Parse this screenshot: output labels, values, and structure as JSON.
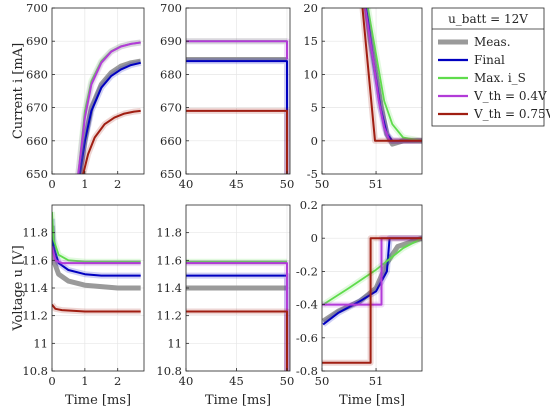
{
  "figure": {
    "ylabel_top": "Current i [mA]",
    "ylabel_bottom": "Voltage u [V]",
    "xlabel": "Time [ms]"
  },
  "legend": {
    "title": "u_batt = 12V",
    "placement": "right of top-right panel"
  },
  "colors": {
    "meas": "#9a9a9a",
    "final": "#0000c0",
    "maxis": "#5fdc4c",
    "vth04": "#b23bd8",
    "vth075": "#a01e12",
    "axis": "#262626",
    "grid": "#e6e6e6"
  },
  "chart_data": [
    {
      "type": "line",
      "xlim": [
        0,
        2.8
      ],
      "ylim": [
        650,
        700
      ],
      "xticks": [
        0,
        1,
        2
      ],
      "yticks": [
        650,
        660,
        670,
        680,
        690,
        700
      ],
      "ylabel": "Current i [mA]",
      "xlabel": "",
      "series": [
        {
          "name": "Meas.",
          "x": [
            0.85,
            1.0,
            1.2,
            1.5,
            1.8,
            2.1,
            2.4,
            2.7
          ],
          "y": [
            650,
            660,
            670,
            677,
            680.5,
            682.5,
            683.5,
            684
          ]
        },
        {
          "name": "Final",
          "x": [
            0.85,
            1.0,
            1.2,
            1.5,
            1.8,
            2.1,
            2.4,
            2.7
          ],
          "y": [
            650,
            660,
            669,
            676,
            679.5,
            681.5,
            682.8,
            683.5
          ]
        },
        {
          "name": "Max. i_S",
          "x": [
            0.8,
            1.0,
            1.2,
            1.5,
            1.8,
            2.1,
            2.4,
            2.7
          ],
          "y": [
            650,
            669,
            678,
            684,
            687,
            688.5,
            689.2,
            689.6
          ]
        },
        {
          "name": "V_th = 0.4V",
          "x": [
            0.8,
            1.0,
            1.2,
            1.5,
            1.8,
            2.1,
            2.4,
            2.7
          ],
          "y": [
            650,
            667,
            677,
            683.5,
            686.8,
            688.4,
            689.2,
            689.6
          ]
        },
        {
          "name": "V_th = 0.75V",
          "x": [
            0.95,
            1.1,
            1.3,
            1.6,
            1.9,
            2.2,
            2.5,
            2.7
          ],
          "y": [
            650,
            656,
            661,
            665,
            667,
            668.2,
            668.8,
            669
          ]
        }
      ]
    },
    {
      "type": "line",
      "xlim": [
        40,
        50.3
      ],
      "ylim": [
        650,
        700
      ],
      "xticks": [
        40,
        45,
        50
      ],
      "yticks": [
        650,
        660,
        670,
        680,
        690,
        700
      ],
      "series": [
        {
          "name": "Meas.",
          "x": [
            40,
            50
          ],
          "y": [
            684.5,
            684.5
          ]
        },
        {
          "name": "Final",
          "x": [
            40,
            50,
            50
          ],
          "y": [
            684,
            684,
            650
          ]
        },
        {
          "name": "Max. i_S",
          "x": [
            40,
            50
          ],
          "y": [
            690,
            690
          ]
        },
        {
          "name": "V_th = 0.4V",
          "x": [
            40,
            50,
            50
          ],
          "y": [
            690,
            690,
            684.5
          ]
        },
        {
          "name": "V_th = 0.75V",
          "x": [
            40,
            50,
            50
          ],
          "y": [
            669,
            669,
            650
          ]
        }
      ]
    },
    {
      "type": "line",
      "xlim": [
        50,
        51.85
      ],
      "ylim": [
        -5,
        20
      ],
      "xticks": [
        50,
        51
      ],
      "yticks": [
        -5,
        0,
        5,
        10,
        15,
        20
      ],
      "series": [
        {
          "name": "Meas.",
          "x": [
            50.82,
            50.9,
            51.0,
            51.1,
            51.2,
            51.3,
            51.5,
            51.85
          ],
          "y": [
            20,
            15,
            10,
            5,
            1,
            -0.5,
            0,
            0
          ]
        },
        {
          "name": "Final",
          "x": [
            50.82,
            50.95,
            51.08,
            51.2,
            51.3,
            51.85
          ],
          "y": [
            20,
            12,
            5,
            1,
            0,
            0
          ]
        },
        {
          "name": "Max. i_S",
          "x": [
            50.85,
            51.0,
            51.15,
            51.3,
            51.5,
            51.85
          ],
          "y": [
            20,
            13,
            6,
            2.5,
            0.5,
            0
          ]
        },
        {
          "name": "V_th = 0.4V",
          "x": [
            50.8,
            50.95,
            51.05,
            51.15,
            51.25,
            51.85
          ],
          "y": [
            20,
            12,
            6,
            2,
            0,
            0
          ]
        },
        {
          "name": "V_th = 0.75V",
          "x": [
            50.75,
            50.98,
            51.0,
            51.85
          ],
          "y": [
            20,
            0,
            0,
            0
          ]
        }
      ]
    },
    {
      "type": "line",
      "xlim": [
        0,
        2.8
      ],
      "ylim": [
        10.8,
        12.0
      ],
      "xticks": [
        0,
        1,
        2
      ],
      "yticks": [
        10.8,
        11,
        11.2,
        11.4,
        11.6,
        11.8
      ],
      "ylabel": "Voltage u [V]",
      "xlabel": "Time [ms]",
      "series": [
        {
          "name": "Meas.",
          "x": [
            0,
            0.05,
            0.2,
            0.5,
            1.0,
            1.5,
            2.0,
            2.7
          ],
          "y": [
            11.85,
            11.6,
            11.5,
            11.45,
            11.42,
            11.41,
            11.4,
            11.4
          ]
        },
        {
          "name": "Final",
          "x": [
            0,
            0.05,
            0.2,
            0.5,
            1.0,
            1.5,
            2.0,
            2.7
          ],
          "y": [
            11.9,
            11.7,
            11.58,
            11.53,
            11.5,
            11.49,
            11.49,
            11.49
          ]
        },
        {
          "name": "Max. i_S",
          "x": [
            0,
            0.05,
            0.2,
            0.5,
            1.0,
            2.0,
            2.7
          ],
          "y": [
            11.95,
            11.75,
            11.64,
            11.6,
            11.59,
            11.59,
            11.59
          ]
        },
        {
          "name": "V_th = 0.4V",
          "x": [
            0,
            0.1,
            0.3,
            1.0,
            2.7
          ],
          "y": [
            11.7,
            11.6,
            11.58,
            11.58,
            11.58
          ]
        },
        {
          "name": "V_th = 0.75V",
          "x": [
            0,
            0.1,
            0.3,
            1.0,
            2.7
          ],
          "y": [
            11.28,
            11.25,
            11.24,
            11.23,
            11.23
          ]
        }
      ]
    },
    {
      "type": "line",
      "xlim": [
        40,
        50.3
      ],
      "ylim": [
        10.8,
        12.0
      ],
      "xticks": [
        40,
        45,
        50
      ],
      "yticks": [
        10.8,
        11,
        11.2,
        11.4,
        11.6,
        11.8
      ],
      "xlabel": "Time [ms]",
      "series": [
        {
          "name": "Meas.",
          "x": [
            40,
            50
          ],
          "y": [
            11.4,
            11.4
          ]
        },
        {
          "name": "Final",
          "x": [
            40,
            50,
            50
          ],
          "y": [
            11.49,
            11.49,
            10.8
          ]
        },
        {
          "name": "Max. i_S",
          "x": [
            40,
            50
          ],
          "y": [
            11.59,
            11.59
          ]
        },
        {
          "name": "V_th = 0.4V",
          "x": [
            40,
            50,
            50
          ],
          "y": [
            11.58,
            11.58,
            10.8
          ]
        },
        {
          "name": "V_th = 0.75V",
          "x": [
            40,
            50,
            50
          ],
          "y": [
            11.23,
            11.23,
            10.8
          ]
        }
      ]
    },
    {
      "type": "line",
      "xlim": [
        50,
        51.85
      ],
      "ylim": [
        -0.8,
        0.2
      ],
      "xticks": [
        50,
        51
      ],
      "yticks": [
        -0.8,
        -0.6,
        -0.4,
        -0.2,
        0,
        0.2
      ],
      "xlabel": "Time [ms]",
      "series": [
        {
          "name": "Meas.",
          "x": [
            50.02,
            50.3,
            50.7,
            51.0,
            51.2,
            51.4,
            51.85
          ],
          "y": [
            -0.5,
            -0.44,
            -0.38,
            -0.3,
            -0.15,
            -0.05,
            0
          ]
        },
        {
          "name": "Final",
          "x": [
            50.02,
            50.3,
            50.7,
            51.0,
            51.2,
            51.25,
            51.85
          ],
          "y": [
            -0.52,
            -0.45,
            -0.38,
            -0.32,
            -0.2,
            0,
            0
          ]
        },
        {
          "name": "Max. i_S",
          "x": [
            50.02,
            50.5,
            51.0,
            51.5,
            51.85
          ],
          "y": [
            -0.4,
            -0.3,
            -0.19,
            -0.06,
            0
          ]
        },
        {
          "name": "V_th = 0.4V",
          "x": [
            50.0,
            50.02,
            51.1,
            51.1,
            51.85
          ],
          "y": [
            -0.4,
            -0.4,
            -0.4,
            0,
            0
          ]
        },
        {
          "name": "V_th = 0.75V",
          "x": [
            50.0,
            50.02,
            50.9,
            50.9,
            51.85
          ],
          "y": [
            -0.75,
            -0.75,
            -0.75,
            0,
            0
          ]
        }
      ]
    }
  ]
}
